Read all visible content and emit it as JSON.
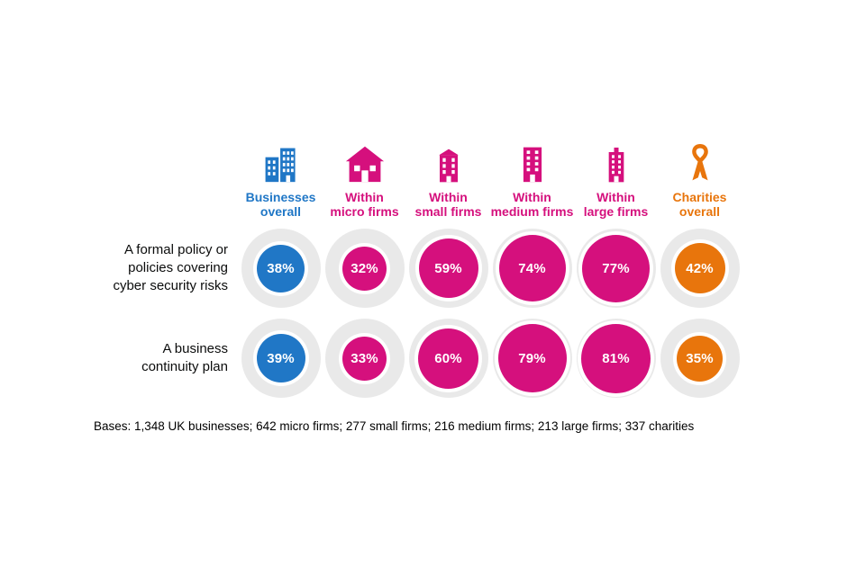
{
  "page": {
    "background": "#ffffff",
    "footnote": "Bases: 1,348 UK businesses; 642 micro firms; 277 small firms; 216 medium firms; 213 large firms; 337 charities"
  },
  "chart_data": {
    "type": "proportional-circle-matrix",
    "unit": "%",
    "value_range": [
      0,
      100
    ],
    "columns": [
      {
        "id": "businesses-overall",
        "label": "Businesses overall",
        "label_lines": [
          "Businesses",
          "overall"
        ],
        "icon": "office-buildings-icon",
        "color": "#2077c6"
      },
      {
        "id": "micro-firms",
        "label": "Within micro firms",
        "label_lines": [
          "Within",
          "micro firms"
        ],
        "icon": "house-icon",
        "color": "#d5107d"
      },
      {
        "id": "small-firms",
        "label": "Within small firms",
        "label_lines": [
          "Within",
          "small firms"
        ],
        "icon": "small-building-icon",
        "color": "#d5107d"
      },
      {
        "id": "medium-firms",
        "label": "Within medium firms",
        "label_lines": [
          "Within",
          "medium firms"
        ],
        "icon": "medium-building-icon",
        "color": "#d5107d"
      },
      {
        "id": "large-firms",
        "label": "Within large firms",
        "label_lines": [
          "Within",
          "large firms"
        ],
        "icon": "large-building-icon",
        "color": "#d5107d"
      },
      {
        "id": "charities-overall",
        "label": "Charities overall",
        "label_lines": [
          "Charities",
          "overall"
        ],
        "icon": "ribbon-icon",
        "color": "#e8750c"
      }
    ],
    "rows": [
      {
        "label": "A formal policy or policies covering cyber security risks",
        "label_lines": [
          "A formal policy or",
          "policies covering",
          "cyber security risks"
        ],
        "values": [
          38,
          32,
          59,
          74,
          77,
          42
        ]
      },
      {
        "label": "A business continuity plan",
        "label_lines": [
          "A business",
          "continuity plan"
        ],
        "values": [
          39,
          33,
          60,
          79,
          81,
          35
        ]
      }
    ],
    "styles": {
      "disc_color": "#e9e9e9",
      "value_text_color": "#ffffff",
      "row_label_color": "#0b0c0c"
    }
  }
}
